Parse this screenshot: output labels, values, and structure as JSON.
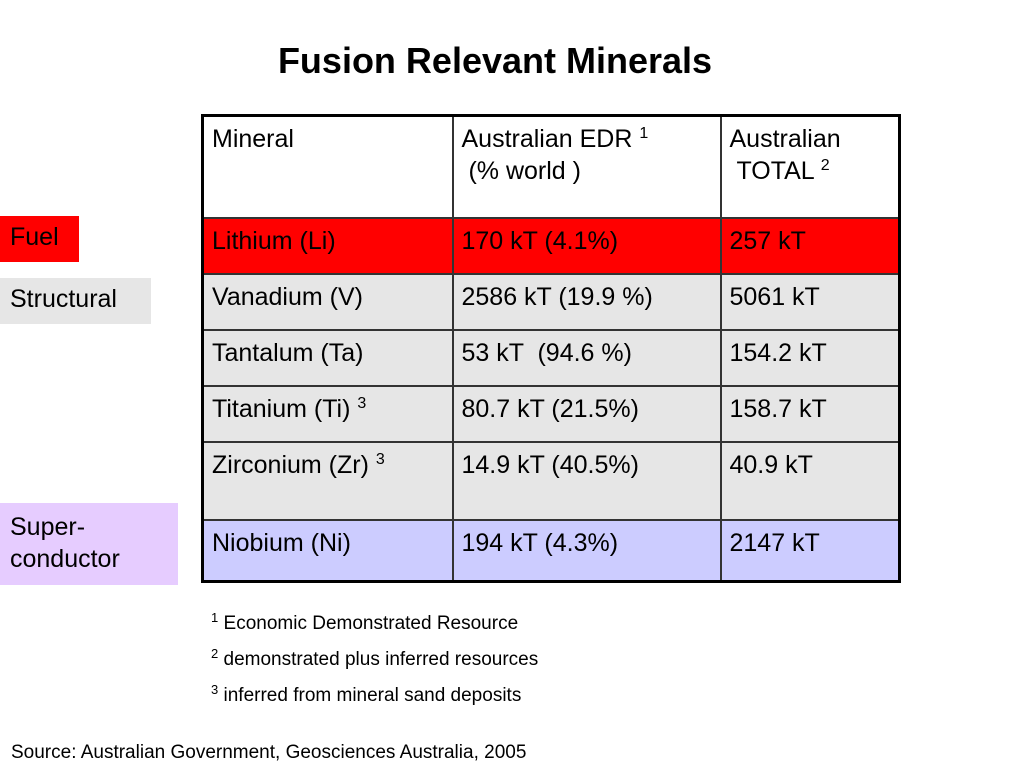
{
  "title": "Fusion Relevant Minerals",
  "categories": {
    "fuel": "Fuel",
    "structural": "Structural",
    "superconductor_line1": "Super-",
    "superconductor_line2": "conductor"
  },
  "colors": {
    "fuel": "#ff0000",
    "structural_tag": "#e6e6e6",
    "structural_row": "#e6e6e6",
    "superconductor_tag": "#e6ccff",
    "superconductor_row": "#ccccff"
  },
  "table": {
    "headers": {
      "mineral": "Mineral",
      "edr_line1": "Australian EDR",
      "edr_sup": "1",
      "edr_line2": "(% world )",
      "total_line1": "Australian",
      "total_line2": "TOTAL",
      "total_sup": "2"
    },
    "rows": [
      {
        "mineral": "Lithium (Li)",
        "mineral_sup": "",
        "edr": "170 kT (4.1%)",
        "total": "257 kT",
        "category": "fuel"
      },
      {
        "mineral": "Vanadium (V)",
        "mineral_sup": "",
        "edr": "2586 kT (19.9 %)",
        "total": "5061 kT",
        "category": "structural"
      },
      {
        "mineral": "Tantalum (Ta)",
        "mineral_sup": "",
        "edr": "53 kT  (94.6 %)",
        "total": "154.2 kT",
        "category": "structural"
      },
      {
        "mineral": "Titanium (Ti)",
        "mineral_sup": "3",
        "edr": "80.7 kT (21.5%)",
        "total": "158.7 kT",
        "category": "structural"
      },
      {
        "mineral": "Zirconium (Zr)",
        "mineral_sup": "3",
        "edr": "14.9 kT (40.5%)",
        "total": "40.9 kT",
        "category": "structural"
      },
      {
        "mineral": "Niobium (Ni)",
        "mineral_sup": "",
        "edr": "194 kT (4.3%)",
        "total": "2147 kT",
        "category": "superconductor"
      }
    ]
  },
  "footnotes": [
    {
      "mark": "1",
      "text": "Economic Demonstrated Resource"
    },
    {
      "mark": "2",
      "text": "demonstrated plus inferred resources"
    },
    {
      "mark": "3",
      "text": "inferred from mineral sand deposits"
    }
  ],
  "source": "Source: Australian Government, Geosciences Australia, 2005"
}
